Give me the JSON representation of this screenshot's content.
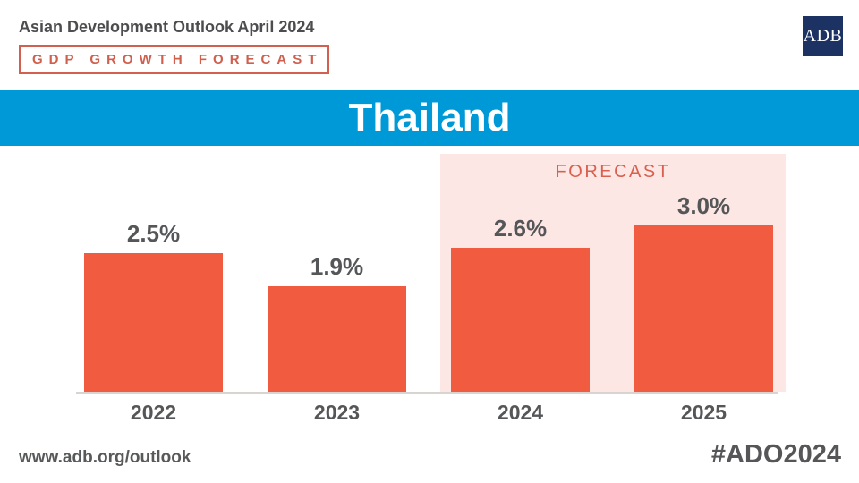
{
  "header": {
    "title": "Asian Development Outlook April 2024",
    "badge": "GDP GROWTH FORECAST",
    "logo_text": "ADB"
  },
  "banner": {
    "country": "Thailand"
  },
  "chart_data": {
    "type": "bar",
    "title": "Thailand GDP Growth Forecast",
    "categories": [
      "2022",
      "2023",
      "2024",
      "2025"
    ],
    "values": [
      2.5,
      1.9,
      2.6,
      3.0
    ],
    "data_labels": [
      "2.5%",
      "1.9%",
      "2.6%",
      "3.0%"
    ],
    "forecast_label": "FORECAST",
    "forecast_categories": [
      "2024",
      "2025"
    ],
    "xlabel": "",
    "ylabel": "",
    "ylim": [
      0,
      4.3
    ],
    "grid": false,
    "axis_shown": "x-baseline-only",
    "bar_color": "#f15b40",
    "forecast_background": "#fde7e5"
  },
  "footer": {
    "url": "www.adb.org/outlook",
    "hashtag": "#ADO2024"
  },
  "colors": {
    "banner_blue": "#0099d8",
    "bar_red": "#f15b40",
    "badge_red": "#d2604f",
    "forecast_pink": "#fde7e5",
    "logo_navy": "#1b3263",
    "text_dark": "#4d4d4f"
  }
}
